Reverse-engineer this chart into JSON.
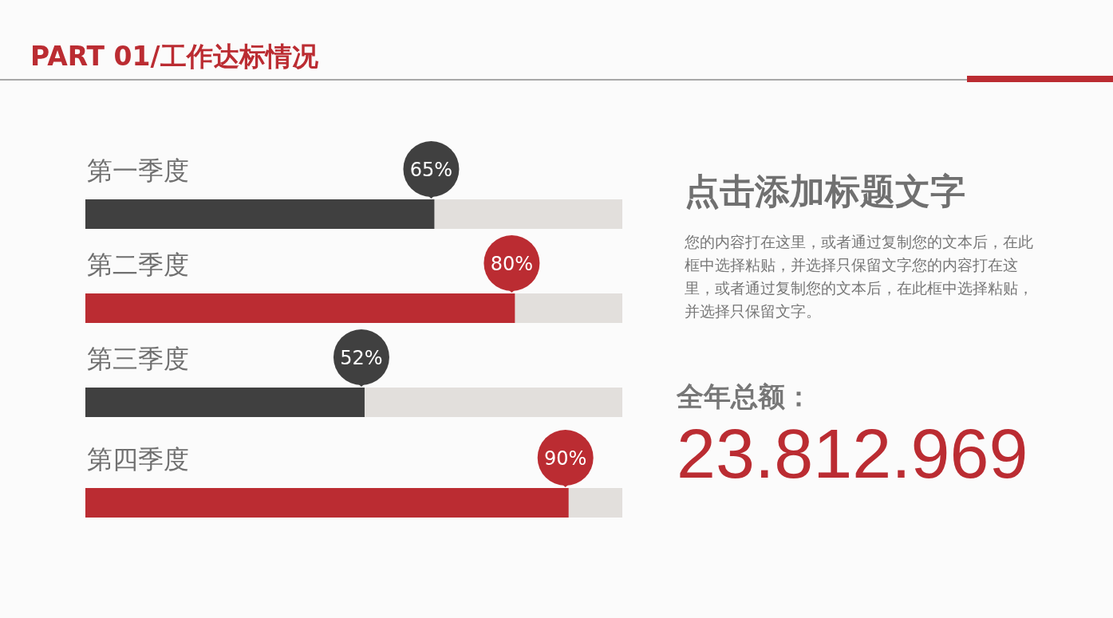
{
  "chart_data": [
    {
      "type": "bar",
      "title": "PART 01/工作达标情况",
      "orientation": "horizontal",
      "categories": [
        "第一季度",
        "第二季度",
        "第三季度",
        "第四季度"
      ],
      "values": [
        65,
        80,
        52,
        90
      ],
      "colors": [
        "#404040",
        "#bb2c32",
        "#404040",
        "#bb2c32"
      ],
      "value_labels": [
        "65%",
        "80%",
        "52%",
        "90%"
      ],
      "xlim": [
        0,
        100
      ]
    },
    {
      "type": "other",
      "title": "点击添加标题文字",
      "annotations": [
        "您的内容打在这里，或者通过复制您的文本后，在此框中选择粘贴，并选择只保留文字您的内容打在这里，或者通过复制您的文本后，在此框中选择粘贴，并选择只保留文字。",
        "全年总额：",
        "23.812.969"
      ]
    }
  ]
}
